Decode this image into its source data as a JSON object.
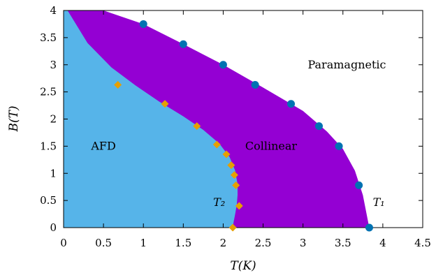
{
  "chart_data": {
    "type": "scatter",
    "title": "",
    "xlabel": "T(K)",
    "ylabel": "B(T)",
    "xlim": [
      0,
      4.5
    ],
    "ylim": [
      0,
      4
    ],
    "x_ticks": [
      "0",
      "0.5",
      "1",
      "1.5",
      "2",
      "2.5",
      "3",
      "3.5",
      "4",
      "4.5"
    ],
    "y_ticks": [
      "0",
      "0.5",
      "1",
      "1.5",
      "2",
      "2.5",
      "3",
      "3.5",
      "4"
    ],
    "grid": false,
    "legend": "none",
    "regions": [
      {
        "label": "AFD",
        "x": 0.5,
        "y": 1.5,
        "color": "#56b4e9"
      },
      {
        "label": "Collinear",
        "x": 2.6,
        "y": 1.5,
        "color": "#9400d3"
      },
      {
        "label": "Paramagnetic",
        "x": 3.55,
        "y": 3.0,
        "color": "#ffffff"
      }
    ],
    "curve_labels": [
      {
        "label": "T₂",
        "x": 1.95,
        "y": 0.46
      },
      {
        "label": "T₁",
        "x": 3.95,
        "y": 0.46
      }
    ],
    "series": [
      {
        "marker": "circle",
        "color": "#0072b2",
        "x": [
          1.0,
          1.5,
          2.0,
          2.4,
          2.85,
          3.2,
          3.45,
          3.7,
          3.83
        ],
        "y": [
          3.75,
          3.38,
          3.0,
          2.63,
          2.28,
          1.87,
          1.5,
          0.78,
          0.0
        ]
      },
      {
        "marker": "diamond",
        "color": "#e69f00",
        "x": [
          0.68,
          1.27,
          1.67,
          1.92,
          2.04,
          2.1,
          2.14,
          2.16,
          2.2,
          2.12
        ],
        "y": [
          2.63,
          2.28,
          1.87,
          1.53,
          1.35,
          1.15,
          0.97,
          0.78,
          0.4,
          0.0
        ]
      }
    ],
    "boundary_T1": {
      "x": [
        0.1,
        0.5,
        1.0,
        1.5,
        2.0,
        2.5,
        3.0,
        3.3,
        3.5,
        3.65,
        3.75,
        3.83
      ],
      "y": [
        4.0,
        4.0,
        3.75,
        3.38,
        3.0,
        2.58,
        2.15,
        1.77,
        1.45,
        1.05,
        0.6,
        0.0
      ]
    },
    "boundary_T2": {
      "x": [
        0.05,
        0.3,
        0.6,
        0.9,
        1.2,
        1.5,
        1.75,
        1.95,
        2.08,
        2.15,
        2.18,
        2.18,
        2.17,
        2.15,
        2.13,
        2.12
      ],
      "y": [
        4.0,
        3.4,
        2.95,
        2.62,
        2.32,
        2.05,
        1.8,
        1.55,
        1.3,
        1.05,
        0.8,
        0.6,
        0.42,
        0.25,
        0.1,
        0.0
      ]
    }
  }
}
